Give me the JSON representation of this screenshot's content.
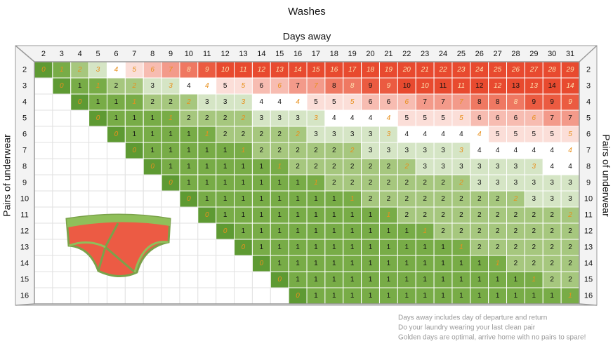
{
  "chart_data": {
    "type": "heatmap",
    "title": "Washes",
    "x_label": "Days away",
    "y_label": "Pairs of underwear",
    "x_categories": [
      2,
      3,
      4,
      5,
      6,
      7,
      8,
      9,
      10,
      11,
      12,
      13,
      14,
      15,
      16,
      17,
      18,
      19,
      20,
      21,
      22,
      23,
      24,
      25,
      26,
      27,
      28,
      29,
      30,
      31
    ],
    "y_categories": [
      2,
      3,
      4,
      5,
      6,
      7,
      8,
      9,
      10,
      11,
      12,
      13,
      14,
      15,
      16
    ],
    "values": [
      [
        0,
        1,
        2,
        3,
        4,
        5,
        6,
        7,
        8,
        9,
        10,
        11,
        12,
        13,
        14,
        15,
        16,
        17,
        18,
        19,
        20,
        21,
        22,
        23,
        24,
        25,
        26,
        27,
        28,
        29
      ],
      [
        null,
        0,
        1,
        1,
        2,
        2,
        3,
        3,
        4,
        4,
        5,
        5,
        6,
        6,
        7,
        7,
        8,
        8,
        9,
        9,
        10,
        10,
        11,
        11,
        12,
        12,
        13,
        13,
        14,
        14
      ],
      [
        null,
        null,
        0,
        1,
        1,
        1,
        2,
        2,
        2,
        3,
        3,
        3,
        4,
        4,
        4,
        5,
        5,
        5,
        6,
        6,
        6,
        7,
        7,
        7,
        8,
        8,
        8,
        9,
        9,
        9
      ],
      [
        null,
        null,
        null,
        0,
        1,
        1,
        1,
        1,
        2,
        2,
        2,
        2,
        3,
        3,
        3,
        3,
        4,
        4,
        4,
        4,
        5,
        5,
        5,
        5,
        6,
        6,
        6,
        6,
        7,
        7
      ],
      [
        null,
        null,
        null,
        null,
        0,
        1,
        1,
        1,
        1,
        1,
        2,
        2,
        2,
        2,
        2,
        3,
        3,
        3,
        3,
        3,
        4,
        4,
        4,
        4,
        4,
        5,
        5,
        5,
        5,
        5
      ],
      [
        null,
        null,
        null,
        null,
        null,
        0,
        1,
        1,
        1,
        1,
        1,
        1,
        2,
        2,
        2,
        2,
        2,
        2,
        3,
        3,
        3,
        3,
        3,
        3,
        4,
        4,
        4,
        4,
        4,
        4
      ],
      [
        null,
        null,
        null,
        null,
        null,
        null,
        0,
        1,
        1,
        1,
        1,
        1,
        1,
        1,
        2,
        2,
        2,
        2,
        2,
        2,
        2,
        3,
        3,
        3,
        3,
        3,
        3,
        3,
        4,
        4
      ],
      [
        null,
        null,
        null,
        null,
        null,
        null,
        null,
        0,
        1,
        1,
        1,
        1,
        1,
        1,
        1,
        1,
        2,
        2,
        2,
        2,
        2,
        2,
        2,
        2,
        3,
        3,
        3,
        3,
        3,
        3
      ],
      [
        null,
        null,
        null,
        null,
        null,
        null,
        null,
        null,
        0,
        1,
        1,
        1,
        1,
        1,
        1,
        1,
        1,
        1,
        2,
        2,
        2,
        2,
        2,
        2,
        2,
        2,
        2,
        3,
        3,
        3
      ],
      [
        null,
        null,
        null,
        null,
        null,
        null,
        null,
        null,
        null,
        0,
        1,
        1,
        1,
        1,
        1,
        1,
        1,
        1,
        1,
        1,
        2,
        2,
        2,
        2,
        2,
        2,
        2,
        2,
        2,
        2
      ],
      [
        null,
        null,
        null,
        null,
        null,
        null,
        null,
        null,
        null,
        null,
        0,
        1,
        1,
        1,
        1,
        1,
        1,
        1,
        1,
        1,
        1,
        1,
        2,
        2,
        2,
        2,
        2,
        2,
        2,
        2
      ],
      [
        null,
        null,
        null,
        null,
        null,
        null,
        null,
        null,
        null,
        null,
        null,
        0,
        1,
        1,
        1,
        1,
        1,
        1,
        1,
        1,
        1,
        1,
        1,
        1,
        2,
        2,
        2,
        2,
        2,
        2
      ],
      [
        null,
        null,
        null,
        null,
        null,
        null,
        null,
        null,
        null,
        null,
        null,
        null,
        0,
        1,
        1,
        1,
        1,
        1,
        1,
        1,
        1,
        1,
        1,
        1,
        1,
        1,
        2,
        2,
        2,
        2
      ],
      [
        null,
        null,
        null,
        null,
        null,
        null,
        null,
        null,
        null,
        null,
        null,
        null,
        null,
        0,
        1,
        1,
        1,
        1,
        1,
        1,
        1,
        1,
        1,
        1,
        1,
        1,
        1,
        1,
        2,
        2
      ],
      [
        null,
        null,
        null,
        null,
        null,
        null,
        null,
        null,
        null,
        null,
        null,
        null,
        null,
        null,
        0,
        1,
        1,
        1,
        1,
        1,
        1,
        1,
        1,
        1,
        1,
        1,
        1,
        1,
        1,
        1
      ]
    ],
    "notes": [
      "Days away includes day of departure and return",
      "Do your laundry wearing your last clean pair",
      "Golden days are optimal, arrive home with no pairs to spare!"
    ]
  }
}
